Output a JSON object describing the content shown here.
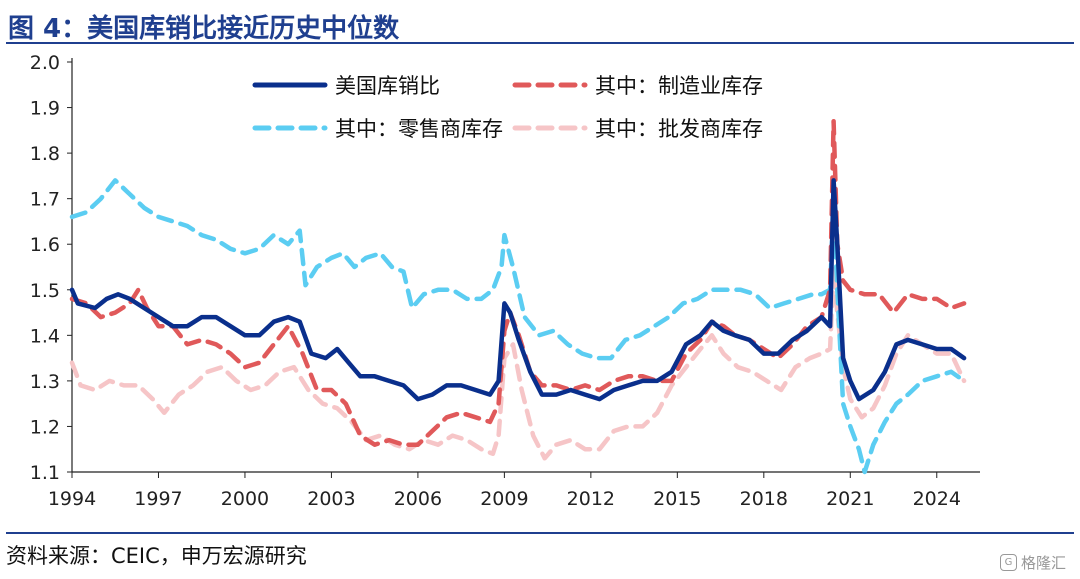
{
  "header": {
    "title": "图 4：美国库销比接近历史中位数"
  },
  "footer": {
    "source": "资料来源：CEIC，申万宏源研究",
    "watermark": "格隆汇",
    "watermark_icon": "logo-icon"
  },
  "colors": {
    "total": "#0a2f8c",
    "manufacturing": "#e0595a",
    "retail": "#5bcdf2",
    "wholesale": "#f6c5c7",
    "axis": "#222222"
  },
  "chart_data": {
    "type": "line",
    "title": "",
    "xlabel": "",
    "ylabel": "",
    "xlim": [
      1994,
      2025.5
    ],
    "ylim": [
      1.1,
      2.0
    ],
    "x_ticks": [
      "1994",
      "1997",
      "2000",
      "2003",
      "2006",
      "2009",
      "2012",
      "2015",
      "2018",
      "2021",
      "2024"
    ],
    "y_ticks": [
      "1.1",
      "1.2",
      "1.3",
      "1.4",
      "1.5",
      "1.6",
      "1.7",
      "1.8",
      "1.9",
      "2.0"
    ],
    "grid": false,
    "legend_position": "top",
    "series": [
      {
        "name": "美国库销比",
        "style": "solid",
        "color": "#0a2f8c",
        "points": [
          [
            1994.0,
            1.5
          ],
          [
            1994.2,
            1.47
          ],
          [
            1994.8,
            1.46
          ],
          [
            1995.2,
            1.48
          ],
          [
            1995.6,
            1.49
          ],
          [
            1996.0,
            1.48
          ],
          [
            1996.5,
            1.46
          ],
          [
            1997.0,
            1.44
          ],
          [
            1997.5,
            1.42
          ],
          [
            1998.0,
            1.42
          ],
          [
            1998.5,
            1.44
          ],
          [
            1999.0,
            1.44
          ],
          [
            1999.5,
            1.42
          ],
          [
            2000.0,
            1.4
          ],
          [
            2000.5,
            1.4
          ],
          [
            2001.0,
            1.43
          ],
          [
            2001.5,
            1.44
          ],
          [
            2001.9,
            1.43
          ],
          [
            2002.3,
            1.36
          ],
          [
            2002.8,
            1.35
          ],
          [
            2003.2,
            1.37
          ],
          [
            2003.6,
            1.34
          ],
          [
            2004.0,
            1.31
          ],
          [
            2004.5,
            1.31
          ],
          [
            2005.0,
            1.3
          ],
          [
            2005.5,
            1.29
          ],
          [
            2006.0,
            1.26
          ],
          [
            2006.5,
            1.27
          ],
          [
            2007.0,
            1.29
          ],
          [
            2007.5,
            1.29
          ],
          [
            2008.0,
            1.28
          ],
          [
            2008.5,
            1.27
          ],
          [
            2008.8,
            1.3
          ],
          [
            2009.0,
            1.47
          ],
          [
            2009.2,
            1.45
          ],
          [
            2009.5,
            1.39
          ],
          [
            2009.9,
            1.32
          ],
          [
            2010.3,
            1.27
          ],
          [
            2010.8,
            1.27
          ],
          [
            2011.3,
            1.28
          ],
          [
            2011.8,
            1.27
          ],
          [
            2012.3,
            1.26
          ],
          [
            2012.8,
            1.28
          ],
          [
            2013.3,
            1.29
          ],
          [
            2013.8,
            1.3
          ],
          [
            2014.3,
            1.3
          ],
          [
            2014.8,
            1.32
          ],
          [
            2015.3,
            1.38
          ],
          [
            2015.8,
            1.4
          ],
          [
            2016.2,
            1.43
          ],
          [
            2016.6,
            1.41
          ],
          [
            2017.0,
            1.4
          ],
          [
            2017.5,
            1.39
          ],
          [
            2018.0,
            1.36
          ],
          [
            2018.5,
            1.36
          ],
          [
            2019.0,
            1.39
          ],
          [
            2019.5,
            1.41
          ],
          [
            2020.0,
            1.44
          ],
          [
            2020.3,
            1.42
          ],
          [
            2020.42,
            1.74
          ],
          [
            2020.55,
            1.6
          ],
          [
            2020.75,
            1.35
          ],
          [
            2021.0,
            1.3
          ],
          [
            2021.3,
            1.26
          ],
          [
            2021.8,
            1.28
          ],
          [
            2022.2,
            1.32
          ],
          [
            2022.6,
            1.38
          ],
          [
            2023.0,
            1.39
          ],
          [
            2023.5,
            1.38
          ],
          [
            2024.0,
            1.37
          ],
          [
            2024.5,
            1.37
          ],
          [
            2024.95,
            1.35
          ]
        ]
      },
      {
        "name": "其中：制造业库存",
        "style": "dashed",
        "color": "#e0595a",
        "points": [
          [
            1994.0,
            1.48
          ],
          [
            1994.5,
            1.47
          ],
          [
            1995.0,
            1.44
          ],
          [
            1995.5,
            1.45
          ],
          [
            1996.0,
            1.47
          ],
          [
            1996.3,
            1.5
          ],
          [
            1996.6,
            1.46
          ],
          [
            1997.0,
            1.42
          ],
          [
            1997.5,
            1.42
          ],
          [
            1998.0,
            1.38
          ],
          [
            1998.5,
            1.39
          ],
          [
            1999.0,
            1.38
          ],
          [
            1999.5,
            1.36
          ],
          [
            2000.0,
            1.33
          ],
          [
            2000.5,
            1.34
          ],
          [
            2001.0,
            1.38
          ],
          [
            2001.5,
            1.42
          ],
          [
            2002.0,
            1.36
          ],
          [
            2002.5,
            1.28
          ],
          [
            2003.0,
            1.28
          ],
          [
            2003.5,
            1.25
          ],
          [
            2004.0,
            1.18
          ],
          [
            2004.5,
            1.16
          ],
          [
            2005.0,
            1.17
          ],
          [
            2005.5,
            1.16
          ],
          [
            2006.0,
            1.16
          ],
          [
            2006.5,
            1.19
          ],
          [
            2007.0,
            1.22
          ],
          [
            2007.5,
            1.23
          ],
          [
            2008.0,
            1.22
          ],
          [
            2008.5,
            1.21
          ],
          [
            2008.8,
            1.25
          ],
          [
            2009.0,
            1.41
          ],
          [
            2009.2,
            1.45
          ],
          [
            2009.5,
            1.4
          ],
          [
            2009.9,
            1.32
          ],
          [
            2010.3,
            1.29
          ],
          [
            2010.8,
            1.29
          ],
          [
            2011.3,
            1.28
          ],
          [
            2011.8,
            1.29
          ],
          [
            2012.3,
            1.28
          ],
          [
            2012.8,
            1.3
          ],
          [
            2013.3,
            1.31
          ],
          [
            2013.8,
            1.31
          ],
          [
            2014.3,
            1.3
          ],
          [
            2014.8,
            1.3
          ],
          [
            2015.3,
            1.36
          ],
          [
            2015.8,
            1.39
          ],
          [
            2016.2,
            1.43
          ],
          [
            2016.6,
            1.42
          ],
          [
            2017.0,
            1.4
          ],
          [
            2017.5,
            1.39
          ],
          [
            2018.0,
            1.37
          ],
          [
            2018.5,
            1.35
          ],
          [
            2019.0,
            1.38
          ],
          [
            2019.5,
            1.42
          ],
          [
            2020.0,
            1.44
          ],
          [
            2020.3,
            1.5
          ],
          [
            2020.42,
            1.87
          ],
          [
            2020.55,
            1.6
          ],
          [
            2020.75,
            1.52
          ],
          [
            2021.0,
            1.5
          ],
          [
            2021.5,
            1.49
          ],
          [
            2022.0,
            1.49
          ],
          [
            2022.5,
            1.45
          ],
          [
            2023.0,
            1.49
          ],
          [
            2023.5,
            1.48
          ],
          [
            2024.0,
            1.48
          ],
          [
            2024.5,
            1.46
          ],
          [
            2024.95,
            1.47
          ]
        ]
      },
      {
        "name": "其中：零售商库存",
        "style": "dashed",
        "color": "#5bcdf2",
        "points": [
          [
            1994.0,
            1.66
          ],
          [
            1994.5,
            1.67
          ],
          [
            1995.0,
            1.7
          ],
          [
            1995.5,
            1.74
          ],
          [
            1996.0,
            1.71
          ],
          [
            1996.5,
            1.68
          ],
          [
            1997.0,
            1.66
          ],
          [
            1997.5,
            1.65
          ],
          [
            1998.0,
            1.64
          ],
          [
            1998.5,
            1.62
          ],
          [
            1999.0,
            1.61
          ],
          [
            1999.5,
            1.59
          ],
          [
            2000.0,
            1.58
          ],
          [
            2000.5,
            1.59
          ],
          [
            2001.0,
            1.62
          ],
          [
            2001.5,
            1.6
          ],
          [
            2001.9,
            1.63
          ],
          [
            2002.1,
            1.51
          ],
          [
            2002.5,
            1.55
          ],
          [
            2003.0,
            1.57
          ],
          [
            2003.4,
            1.58
          ],
          [
            2003.8,
            1.55
          ],
          [
            2004.2,
            1.57
          ],
          [
            2004.7,
            1.58
          ],
          [
            2005.1,
            1.55
          ],
          [
            2005.5,
            1.54
          ],
          [
            2005.8,
            1.46
          ],
          [
            2006.2,
            1.49
          ],
          [
            2006.7,
            1.5
          ],
          [
            2007.2,
            1.5
          ],
          [
            2007.7,
            1.48
          ],
          [
            2008.2,
            1.48
          ],
          [
            2008.6,
            1.5
          ],
          [
            2008.9,
            1.55
          ],
          [
            2009.0,
            1.62
          ],
          [
            2009.3,
            1.55
          ],
          [
            2009.7,
            1.44
          ],
          [
            2010.2,
            1.4
          ],
          [
            2010.7,
            1.41
          ],
          [
            2011.2,
            1.38
          ],
          [
            2011.7,
            1.36
          ],
          [
            2012.2,
            1.35
          ],
          [
            2012.7,
            1.35
          ],
          [
            2013.2,
            1.39
          ],
          [
            2013.7,
            1.4
          ],
          [
            2014.2,
            1.42
          ],
          [
            2014.7,
            1.44
          ],
          [
            2015.2,
            1.47
          ],
          [
            2015.7,
            1.48
          ],
          [
            2016.2,
            1.5
          ],
          [
            2016.7,
            1.5
          ],
          [
            2017.2,
            1.5
          ],
          [
            2017.7,
            1.49
          ],
          [
            2018.2,
            1.46
          ],
          [
            2018.7,
            1.47
          ],
          [
            2019.2,
            1.48
          ],
          [
            2019.7,
            1.49
          ],
          [
            2020.0,
            1.49
          ],
          [
            2020.3,
            1.5
          ],
          [
            2020.42,
            1.69
          ],
          [
            2020.55,
            1.5
          ],
          [
            2020.75,
            1.25
          ],
          [
            2021.0,
            1.2
          ],
          [
            2021.3,
            1.15
          ],
          [
            2021.5,
            1.1
          ],
          [
            2021.8,
            1.16
          ],
          [
            2022.2,
            1.21
          ],
          [
            2022.6,
            1.25
          ],
          [
            2023.0,
            1.27
          ],
          [
            2023.5,
            1.3
          ],
          [
            2024.0,
            1.31
          ],
          [
            2024.5,
            1.32
          ],
          [
            2024.95,
            1.3
          ]
        ]
      },
      {
        "name": "其中：批发商库存",
        "style": "dashed",
        "color": "#f6c5c7",
        "points": [
          [
            1994.0,
            1.34
          ],
          [
            1994.3,
            1.29
          ],
          [
            1994.8,
            1.28
          ],
          [
            1995.3,
            1.3
          ],
          [
            1995.8,
            1.29
          ],
          [
            1996.3,
            1.29
          ],
          [
            1996.8,
            1.26
          ],
          [
            1997.2,
            1.23
          ],
          [
            1997.7,
            1.27
          ],
          [
            1998.2,
            1.29
          ],
          [
            1998.7,
            1.32
          ],
          [
            1999.2,
            1.33
          ],
          [
            1999.7,
            1.3
          ],
          [
            2000.2,
            1.28
          ],
          [
            2000.7,
            1.29
          ],
          [
            2001.2,
            1.32
          ],
          [
            2001.7,
            1.33
          ],
          [
            2002.2,
            1.28
          ],
          [
            2002.7,
            1.25
          ],
          [
            2003.2,
            1.24
          ],
          [
            2003.7,
            1.21
          ],
          [
            2004.2,
            1.17
          ],
          [
            2004.7,
            1.18
          ],
          [
            2005.2,
            1.16
          ],
          [
            2005.7,
            1.15
          ],
          [
            2006.2,
            1.17
          ],
          [
            2006.7,
            1.16
          ],
          [
            2007.2,
            1.18
          ],
          [
            2007.7,
            1.17
          ],
          [
            2008.2,
            1.15
          ],
          [
            2008.6,
            1.14
          ],
          [
            2008.8,
            1.18
          ],
          [
            2009.0,
            1.35
          ],
          [
            2009.3,
            1.38
          ],
          [
            2009.6,
            1.28
          ],
          [
            2010.0,
            1.18
          ],
          [
            2010.4,
            1.13
          ],
          [
            2010.8,
            1.16
          ],
          [
            2011.3,
            1.17
          ],
          [
            2011.8,
            1.15
          ],
          [
            2012.3,
            1.15
          ],
          [
            2012.8,
            1.19
          ],
          [
            2013.3,
            1.2
          ],
          [
            2013.8,
            1.2
          ],
          [
            2014.3,
            1.23
          ],
          [
            2014.8,
            1.29
          ],
          [
            2015.3,
            1.33
          ],
          [
            2015.8,
            1.37
          ],
          [
            2016.2,
            1.4
          ],
          [
            2016.6,
            1.36
          ],
          [
            2017.1,
            1.33
          ],
          [
            2017.6,
            1.32
          ],
          [
            2018.1,
            1.3
          ],
          [
            2018.6,
            1.28
          ],
          [
            2019.1,
            1.33
          ],
          [
            2019.6,
            1.35
          ],
          [
            2020.0,
            1.36
          ],
          [
            2020.3,
            1.37
          ],
          [
            2020.42,
            1.55
          ],
          [
            2020.55,
            1.45
          ],
          [
            2020.75,
            1.33
          ],
          [
            2021.0,
            1.26
          ],
          [
            2021.4,
            1.22
          ],
          [
            2021.8,
            1.24
          ],
          [
            2022.2,
            1.29
          ],
          [
            2022.6,
            1.36
          ],
          [
            2023.0,
            1.4
          ],
          [
            2023.5,
            1.38
          ],
          [
            2024.0,
            1.36
          ],
          [
            2024.5,
            1.36
          ],
          [
            2024.95,
            1.3
          ]
        ]
      }
    ]
  }
}
